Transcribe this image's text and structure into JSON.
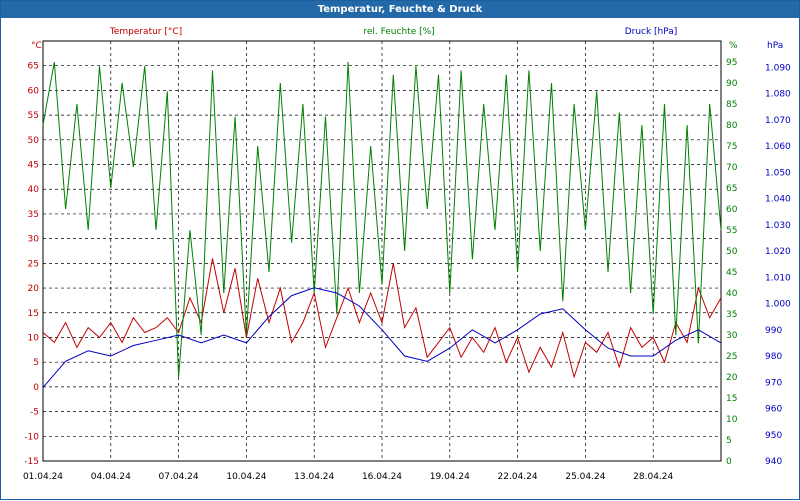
{
  "window": {
    "title": "Temperatur, Feuchte & Druck"
  },
  "chart_data": {
    "type": "line",
    "title": "Temperatur, Feuchte & Druck",
    "grid": true,
    "x": {
      "range": [
        "01.04.24",
        "01.05.24"
      ],
      "ticks": [
        "01.04.24",
        "04.04.24",
        "07.04.24",
        "10.04.24",
        "13.04.24",
        "16.04.24",
        "19.04.24",
        "22.04.24",
        "25.04.24",
        "28.04.24"
      ]
    },
    "axes": {
      "temperature": {
        "unit": "°C",
        "label": "Temperatur [°C]",
        "range": [
          -15,
          70
        ],
        "ticks": [
          "65",
          "60",
          "55",
          "50",
          "45",
          "40",
          "35",
          "30",
          "25",
          "20",
          "15",
          "10",
          "5",
          "0",
          "-5",
          "-10",
          "-15"
        ],
        "color": "#c00000"
      },
      "humidity": {
        "unit": "%",
        "label": "rel. Feuchte [%]",
        "range": [
          0,
          100
        ],
        "ticks": [
          "95",
          "90",
          "85",
          "80",
          "75",
          "70",
          "65",
          "60",
          "55",
          "50",
          "45",
          "40",
          "35",
          "30",
          "25",
          "20",
          "15",
          "10",
          "5",
          "0"
        ],
        "color": "#008000"
      },
      "pressure": {
        "unit": "hPa",
        "label": "Druck [hPa]",
        "range": [
          940,
          1100
        ],
        "ticks": [
          "1.090",
          "1.080",
          "1.070",
          "1.060",
          "1.050",
          "1.040",
          "1.030",
          "1.020",
          "1.010",
          "1.000",
          "990",
          "980",
          "970",
          "960",
          "950",
          "940"
        ],
        "color": "#0000c0"
      }
    },
    "series": [
      {
        "name": "Temperatur [°C]",
        "axis": "temperature",
        "color": "#c00000",
        "x": [
          0.0,
          0.5,
          1.0,
          1.5,
          2.0,
          2.5,
          3.0,
          3.5,
          4.0,
          4.5,
          5.0,
          5.5,
          6.0,
          6.5,
          7.0,
          7.5,
          8.0,
          8.5,
          9.0,
          9.5,
          10.0,
          10.5,
          11.0,
          11.5,
          12.0,
          12.5,
          13.0,
          13.5,
          14.0,
          14.5,
          15.0,
          15.5,
          16.0,
          16.5,
          17.0,
          17.5,
          18.0,
          18.5,
          19.0,
          19.5,
          20.0,
          20.5,
          21.0,
          21.5,
          22.0,
          22.5,
          23.0,
          23.5,
          24.0,
          24.5,
          25.0,
          25.5,
          26.0,
          26.5,
          27.0,
          27.5,
          28.0,
          28.5,
          29.0,
          29.5,
          30.0
        ],
        "values": [
          11,
          9,
          13,
          8,
          12,
          10,
          13,
          9,
          14,
          11,
          12,
          14,
          11,
          18,
          13,
          26,
          15,
          24,
          10,
          22,
          13,
          20,
          9,
          13,
          19,
          8,
          14,
          20,
          13,
          19,
          13,
          25,
          12,
          16,
          6,
          9,
          12,
          6,
          10,
          7,
          12,
          5,
          10,
          3,
          8,
          4,
          11,
          2,
          9,
          7,
          11,
          4,
          12,
          8,
          10,
          5,
          13,
          9,
          20,
          14,
          18
        ]
      },
      {
        "name": "rel. Feuchte [%]",
        "axis": "humidity",
        "color": "#008000",
        "x": [
          0.0,
          0.5,
          1.0,
          1.5,
          2.0,
          2.5,
          3.0,
          3.5,
          4.0,
          4.5,
          5.0,
          5.5,
          6.0,
          6.5,
          7.0,
          7.5,
          8.0,
          8.5,
          9.0,
          9.5,
          10.0,
          10.5,
          11.0,
          11.5,
          12.0,
          12.5,
          13.0,
          13.5,
          14.0,
          14.5,
          15.0,
          15.5,
          16.0,
          16.5,
          17.0,
          17.5,
          18.0,
          18.5,
          19.0,
          19.5,
          20.0,
          20.5,
          21.0,
          21.5,
          22.0,
          22.5,
          23.0,
          23.5,
          24.0,
          24.5,
          25.0,
          25.5,
          26.0,
          26.5,
          27.0,
          27.5,
          28.0,
          28.5,
          29.0,
          29.5,
          30.0
        ],
        "values": [
          80,
          95,
          60,
          85,
          55,
          94,
          65,
          90,
          70,
          94,
          55,
          88,
          20,
          55,
          30,
          93,
          40,
          82,
          30,
          75,
          45,
          90,
          52,
          85,
          40,
          82,
          35,
          95,
          40,
          75,
          42,
          92,
          50,
          94,
          60,
          92,
          40,
          93,
          48,
          85,
          55,
          92,
          45,
          93,
          50,
          90,
          38,
          85,
          55,
          88,
          45,
          83,
          40,
          80,
          35,
          85,
          30,
          80,
          28,
          85,
          55
        ]
      },
      {
        "name": "Druck [hPa]",
        "axis": "pressure",
        "color": "#0000c0",
        "x": [
          0.0,
          1.0,
          2.0,
          3.0,
          4.0,
          5.0,
          6.0,
          7.0,
          8.0,
          9.0,
          10.0,
          11.0,
          12.0,
          13.0,
          14.0,
          15.0,
          16.0,
          17.0,
          18.0,
          19.0,
          20.0,
          21.0,
          22.0,
          23.0,
          24.0,
          25.0,
          26.0,
          27.0,
          28.0,
          29.0,
          30.0
        ],
        "values": [
          968,
          978,
          982,
          980,
          984,
          986,
          988,
          985,
          988,
          985,
          995,
          1003,
          1006,
          1004,
          999,
          990,
          980,
          978,
          983,
          990,
          985,
          990,
          996,
          998,
          990,
          983,
          980,
          980,
          986,
          990,
          985
        ]
      }
    ]
  }
}
